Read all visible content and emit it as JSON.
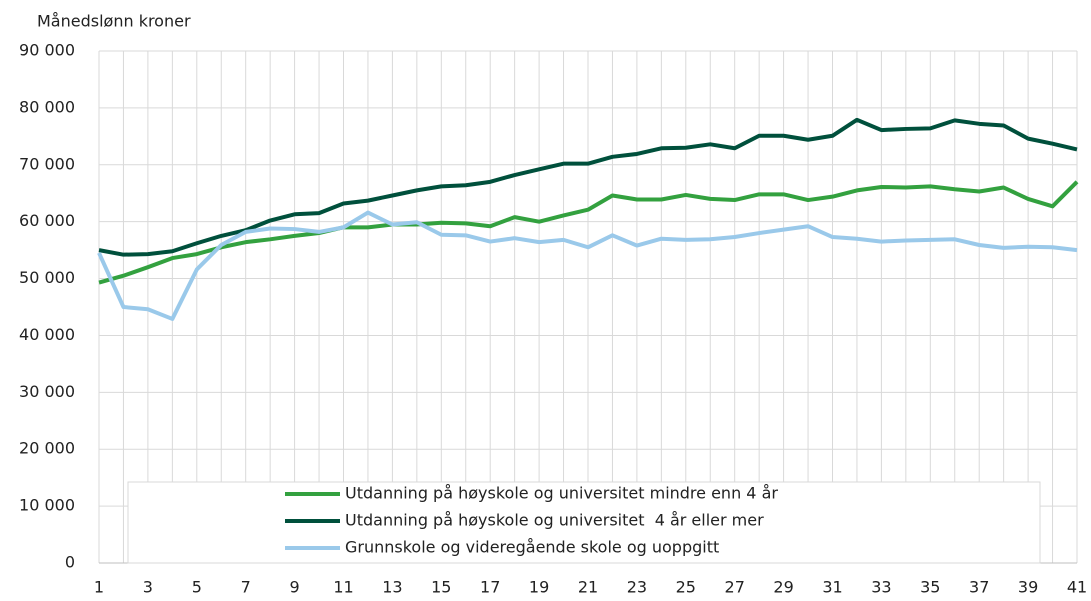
{
  "chart_data": {
    "type": "line",
    "y_label": "Månedslønn kroner",
    "x": [
      1,
      2,
      3,
      4,
      5,
      6,
      7,
      8,
      9,
      10,
      11,
      12,
      13,
      14,
      15,
      16,
      17,
      18,
      19,
      20,
      21,
      22,
      23,
      24,
      25,
      26,
      27,
      28,
      29,
      30,
      31,
      32,
      33,
      34,
      35,
      36,
      37,
      38,
      39,
      40,
      41
    ],
    "xlim": [
      1,
      41
    ],
    "xticks": [
      1,
      3,
      5,
      7,
      9,
      11,
      13,
      15,
      17,
      19,
      21,
      23,
      25,
      27,
      29,
      31,
      33,
      35,
      37,
      39,
      41
    ],
    "ylim": [
      0,
      90000
    ],
    "yticks": [
      {
        "value": 0,
        "label": "0"
      },
      {
        "value": 10000,
        "label": "10 000"
      },
      {
        "value": 20000,
        "label": "20 000"
      },
      {
        "value": 30000,
        "label": "30 000"
      },
      {
        "value": 40000,
        "label": "40 000"
      },
      {
        "value": 50000,
        "label": "50 000"
      },
      {
        "value": 60000,
        "label": "60 000"
      },
      {
        "value": 70000,
        "label": "70 000"
      },
      {
        "value": 80000,
        "label": "80 000"
      },
      {
        "value": 90000,
        "label": "90 000"
      }
    ],
    "grid": true,
    "legend": "bottom",
    "series": [
      {
        "name": "Utdanning på høyskole og universitet mindre enn 4 år",
        "color": "#33a13f",
        "values": [
          49300,
          50500,
          52000,
          53600,
          54300,
          55500,
          56400,
          56900,
          57500,
          58000,
          59000,
          59000,
          59500,
          59500,
          59800,
          59700,
          59200,
          60800,
          60000,
          61100,
          62100,
          64600,
          63900,
          63900,
          64700,
          64000,
          63800,
          64800,
          64800,
          63800,
          64400,
          65500,
          66100,
          66000,
          66200,
          65700,
          65300,
          66000,
          64000,
          62700,
          67000
        ]
      },
      {
        "name": "Utdanning på høyskole og universitet  4 år eller mer",
        "color": "#00503c",
        "values": [
          55000,
          54200,
          54300,
          54800,
          56200,
          57500,
          58500,
          60200,
          61300,
          61500,
          63200,
          63700,
          64600,
          65500,
          66200,
          66400,
          67000,
          68200,
          69200,
          70200,
          70200,
          71400,
          71900,
          72900,
          73000,
          73600,
          72900,
          75100,
          75100,
          74400,
          75100,
          77900,
          76100,
          76300,
          76400,
          77800,
          77200,
          76900,
          74600,
          73700,
          72700
        ]
      },
      {
        "name": "Grunnskole og videregående skole og uoppgitt",
        "color": "#9ac9ea",
        "values": [
          54500,
          45000,
          44600,
          42900,
          51600,
          55900,
          58200,
          58800,
          58700,
          58200,
          59000,
          61600,
          59500,
          59900,
          57700,
          57600,
          56500,
          57100,
          56400,
          56800,
          55500,
          57600,
          55800,
          57000,
          56800,
          56900,
          57300,
          58000,
          58600,
          59200,
          57300,
          57000,
          56500,
          56700,
          56800,
          56900,
          55900,
          55400,
          55600,
          55500,
          55000
        ]
      }
    ]
  }
}
